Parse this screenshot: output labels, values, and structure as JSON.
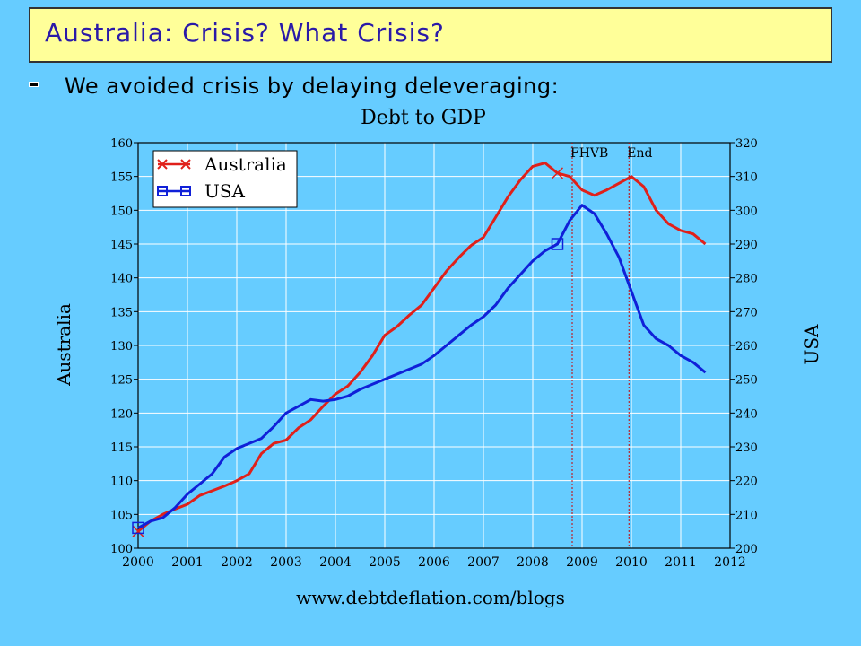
{
  "slide": {
    "title": "Australia: Crisis? What Crisis?",
    "bullet": "We avoided crisis by delaying deleveraging:",
    "footer": "www.debtdeflation.com/blogs",
    "colors": {
      "background": "#66ccff",
      "title_box": "#ffff99",
      "title_text": "#2a1aa8",
      "australia": "#e0201a",
      "usa": "#1020d8"
    }
  },
  "chart_data": {
    "type": "line",
    "title": "Debt to GDP",
    "ylabel_left": "Australia",
    "ylabel_right": "USA",
    "xlim": [
      2000,
      2012
    ],
    "ylim_left": [
      100,
      160
    ],
    "ylim_right": [
      200,
      320
    ],
    "x_ticks": [
      "2000",
      "2001",
      "2002",
      "2003",
      "2004",
      "2005",
      "2006",
      "2007",
      "2008",
      "2009",
      "2010",
      "2011",
      "2012"
    ],
    "y_ticks_left": [
      "100",
      "105",
      "110",
      "115",
      "120",
      "125",
      "130",
      "135",
      "140",
      "145",
      "150",
      "155",
      "160"
    ],
    "y_ticks_right": [
      "200",
      "210",
      "220",
      "230",
      "240",
      "250",
      "260",
      "270",
      "280",
      "290",
      "300",
      "310",
      "320"
    ],
    "grid": true,
    "legend_placement": "top-left",
    "annotations": [
      {
        "label": "FHVB",
        "x": 2008.8
      },
      {
        "label": "End",
        "x": 2009.95
      }
    ],
    "series": [
      {
        "name": "Australia",
        "axis": "left",
        "marker": "x",
        "color": "#e0201a",
        "x": [
          2000.0,
          2000.25,
          2000.5,
          2000.75,
          2001.0,
          2001.25,
          2001.5,
          2001.75,
          2002.0,
          2002.25,
          2002.5,
          2002.75,
          2003.0,
          2003.25,
          2003.5,
          2003.75,
          2004.0,
          2004.25,
          2004.5,
          2004.75,
          2005.0,
          2005.25,
          2005.5,
          2005.75,
          2006.0,
          2006.25,
          2006.5,
          2006.75,
          2007.0,
          2007.25,
          2007.5,
          2007.75,
          2008.0,
          2008.25,
          2008.5,
          2008.75,
          2009.0,
          2009.25,
          2009.5,
          2009.75,
          2010.0,
          2010.25,
          2010.5,
          2010.75,
          2011.0,
          2011.25,
          2011.5
        ],
        "values": [
          102.5,
          104.0,
          105.0,
          105.8,
          106.5,
          107.8,
          108.5,
          109.2,
          110.0,
          111.0,
          114.0,
          115.5,
          116.0,
          117.8,
          119.0,
          121.0,
          122.8,
          124.0,
          126.0,
          128.5,
          131.5,
          132.8,
          134.5,
          136.0,
          138.5,
          141.0,
          143.0,
          144.8,
          146.0,
          149.0,
          152.0,
          154.5,
          156.5,
          157.0,
          155.5,
          155.0,
          153.0,
          152.2,
          153.0,
          154.0,
          155.0,
          153.5,
          150.0,
          148.0,
          147.0,
          146.5,
          145.0
        ]
      },
      {
        "name": "USA",
        "axis": "right",
        "marker": "square",
        "color": "#1020d8",
        "x": [
          2000.0,
          2000.25,
          2000.5,
          2000.75,
          2001.0,
          2001.25,
          2001.5,
          2001.75,
          2002.0,
          2002.25,
          2002.5,
          2002.75,
          2003.0,
          2003.25,
          2003.5,
          2003.75,
          2004.0,
          2004.25,
          2004.5,
          2004.75,
          2005.0,
          2005.25,
          2005.5,
          2005.75,
          2006.0,
          2006.25,
          2006.5,
          2006.75,
          2007.0,
          2007.25,
          2007.5,
          2007.75,
          2008.0,
          2008.25,
          2008.5,
          2008.75,
          2009.0,
          2009.25,
          2009.5,
          2009.75,
          2010.0,
          2010.25,
          2010.5,
          2010.75,
          2011.0,
          2011.25,
          2011.5
        ],
        "values": [
          206.0,
          208.0,
          209.0,
          212.0,
          216.0,
          219.0,
          222.0,
          227.0,
          229.5,
          231.0,
          232.5,
          236.0,
          240.0,
          242.0,
          244.0,
          243.5,
          244.0,
          245.0,
          247.0,
          248.5,
          250.0,
          251.5,
          253.0,
          254.5,
          257.0,
          260.0,
          263.0,
          266.0,
          268.5,
          272.0,
          277.0,
          281.0,
          285.0,
          288.0,
          290.0,
          297.0,
          301.5,
          299.0,
          293.0,
          286.0,
          276.0,
          266.0,
          262.0,
          260.0,
          257.0,
          255.0,
          252.0
        ]
      }
    ]
  }
}
